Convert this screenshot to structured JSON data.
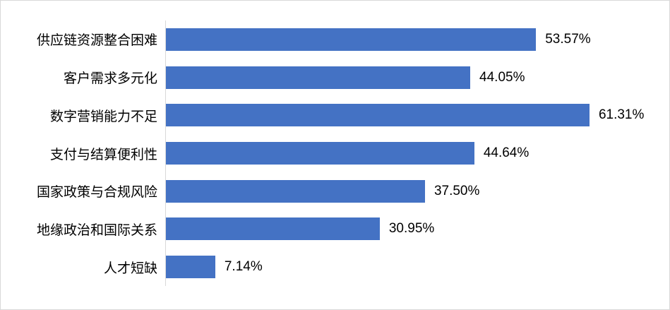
{
  "chart_data": {
    "type": "bar",
    "orientation": "horizontal",
    "title": "",
    "xlabel": "",
    "ylabel": "",
    "grid": false,
    "legend": false,
    "xlim": [
      0,
      70
    ],
    "categories": [
      "供应链资源整合困难",
      "客户需求多元化",
      "数字营销能力不足",
      "支付与结算便利性",
      "国家政策与合规风险",
      "地缘政治和国际关系",
      "人才短缺"
    ],
    "values": [
      53.57,
      44.05,
      61.31,
      44.64,
      37.5,
      30.95,
      7.14
    ],
    "value_labels": [
      "53.57%",
      "44.05%",
      "61.31%",
      "44.64%",
      "37.50%",
      "30.95%",
      "7.14%"
    ],
    "colors": {
      "bar": "#4472c4",
      "value_label": "#000000",
      "category_label": "#000000",
      "axis_line": "#d9d9d9",
      "frame_border": "#d9d9d9",
      "background": "#ffffff"
    }
  }
}
